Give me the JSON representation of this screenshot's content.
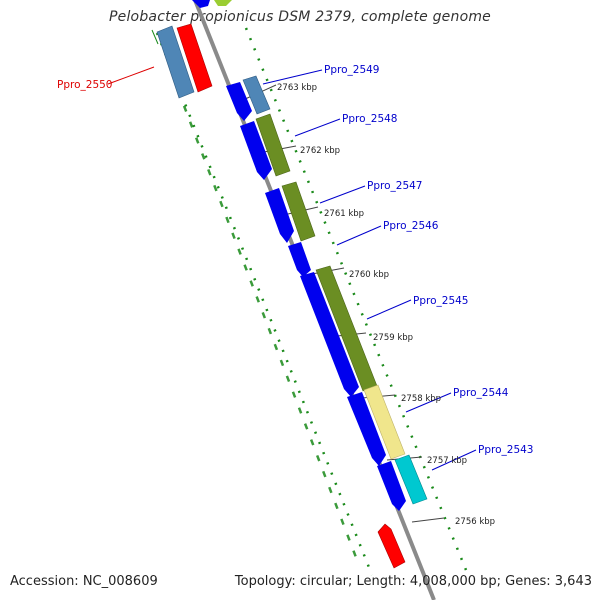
{
  "title": "Pelobacter propionicus DSM 2379, complete genome",
  "accession_text": "Accession: NC_008609",
  "summary_text": "Topology: circular; Length: 4,008,000 bp; Genes: 3,643",
  "colors": {
    "backbone": "#8a8a8a",
    "dots": "#1a8a1a",
    "cds_forward": "#0000ee",
    "steelblue": "#4f86b6",
    "olive": "#6b8e23",
    "khaki": "#f0e68c",
    "cyan": "#00c8d0",
    "red": "#ff0000",
    "label_blue": "#0000cc",
    "label_red": "#dd0000"
  },
  "gene_labels": [
    {
      "text": "Ppro_2550",
      "color": "red"
    },
    {
      "text": "Ppro_2549",
      "color": "blue"
    },
    {
      "text": "Ppro_2548",
      "color": "blue"
    },
    {
      "text": "Ppro_2547",
      "color": "blue"
    },
    {
      "text": "Ppro_2546",
      "color": "blue"
    },
    {
      "text": "Ppro_2545",
      "color": "blue"
    },
    {
      "text": "Ppro_2544",
      "color": "blue"
    },
    {
      "text": "Ppro_2543",
      "color": "blue"
    }
  ],
  "kbp_ticks": [
    "2763 kbp",
    "2762 kbp",
    "2761 kbp",
    "2760 kbp",
    "2759 kbp",
    "2758 kbp",
    "2757 kbp",
    "2756 kbp"
  ]
}
